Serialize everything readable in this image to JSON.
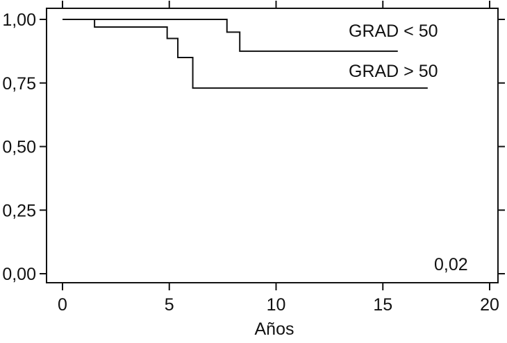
{
  "chart_data": {
    "type": "line",
    "xlabel": "Años",
    "ylabel": "",
    "xlim": [
      0,
      20
    ],
    "ylim": [
      0,
      1
    ],
    "x_ticks": [
      0,
      5,
      10,
      15,
      20
    ],
    "x_tick_labels": [
      "0",
      "5",
      "10",
      "15",
      "20"
    ],
    "y_ticks": [
      0,
      0.25,
      0.5,
      0.75,
      1
    ],
    "y_tick_labels": [
      "0,00",
      "0,25",
      "0,50",
      "0,75",
      "1,00"
    ],
    "grid": false,
    "legend": "none",
    "line_color": "#111111",
    "series": [
      {
        "name": "GRAD < 50",
        "step": true,
        "x": [
          0,
          7.7,
          8.3,
          15.7
        ],
        "y": [
          1.0,
          0.95,
          0.875,
          0.875
        ]
      },
      {
        "name": "GRAD > 50",
        "step": true,
        "x": [
          0,
          1.5,
          4.9,
          5.4,
          6.1,
          17.1
        ],
        "y": [
          1.0,
          0.97,
          0.925,
          0.85,
          0.73,
          0.73
        ]
      }
    ],
    "annotations": [
      {
        "text": "0,02"
      }
    ]
  }
}
